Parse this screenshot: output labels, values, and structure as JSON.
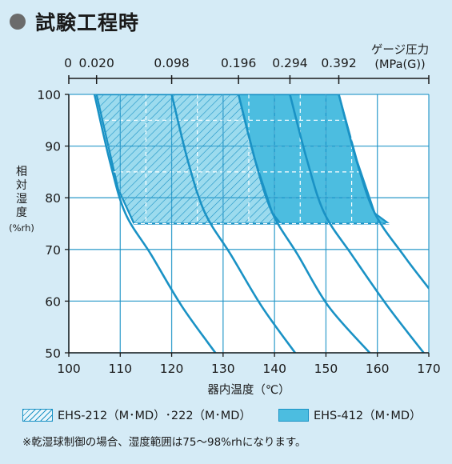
{
  "heading": {
    "title": "試験工程時"
  },
  "chart_data": {
    "type": "area",
    "xlabel": "器内温度（℃）",
    "ylabel": [
      "相",
      "対",
      "湿",
      "度",
      "(%rh)"
    ],
    "xlim": [
      100,
      170
    ],
    "ylim": [
      50,
      100
    ],
    "xticks": [
      100,
      110,
      120,
      130,
      140,
      150,
      160,
      170
    ],
    "yticks": [
      50,
      60,
      70,
      80,
      90,
      100
    ],
    "grid": true,
    "top_axis": {
      "label": [
        "ゲージ圧力",
        "(MPa(G))"
      ],
      "ticks": [
        {
          "value": 0,
          "label": "0",
          "x": 100
        },
        {
          "value": 0.02,
          "label": "0.020",
          "x": 105.4
        },
        {
          "value": 0.098,
          "label": "0.098",
          "x": 120
        },
        {
          "value": 0.196,
          "label": "0.196",
          "x": 133
        },
        {
          "value": 0.294,
          "label": "0.294",
          "x": 143
        },
        {
          "value": 0.392,
          "label": "0.392",
          "x": 152.5
        },
        {
          "value": null,
          "label": "",
          "x": 170
        }
      ]
    },
    "pressure_curves": [
      {
        "pressure": 0.02,
        "points": [
          [
            105,
            100
          ],
          [
            108,
            87
          ],
          [
            111,
            77
          ],
          [
            116,
            69
          ],
          [
            122,
            59
          ],
          [
            128.5,
            50
          ]
        ]
      },
      {
        "pressure": 0.098,
        "points": [
          [
            120,
            100
          ],
          [
            123.2,
            87
          ],
          [
            126.5,
            77
          ],
          [
            131.5,
            69
          ],
          [
            137.5,
            59
          ],
          [
            144,
            50
          ]
        ]
      },
      {
        "pressure": 0.196,
        "points": [
          [
            133,
            100
          ],
          [
            136.3,
            87
          ],
          [
            139.6,
            77
          ],
          [
            144.5,
            69
          ],
          [
            150.5,
            59
          ],
          [
            158.5,
            50
          ]
        ]
      },
      {
        "pressure": 0.294,
        "points": [
          [
            143,
            100
          ],
          [
            146.4,
            87
          ],
          [
            149.7,
            77
          ],
          [
            155,
            69
          ],
          [
            162,
            59
          ],
          [
            169,
            50
          ]
        ]
      },
      {
        "pressure": 0.392,
        "points": [
          [
            152.5,
            100
          ],
          [
            156,
            87
          ],
          [
            159.5,
            77
          ],
          [
            165,
            69
          ],
          [
            170,
            62.5
          ]
        ]
      }
    ],
    "series": [
      {
        "name": "EHS-412（M･MD）",
        "fill": "#4cbde0",
        "points": [
          [
            105.4,
            100
          ],
          [
            152.5,
            100
          ],
          [
            156.1,
            87
          ],
          [
            159.5,
            77
          ],
          [
            162.2,
            75
          ],
          [
            112.7,
            75
          ],
          [
            109.6,
            81.7
          ]
        ]
      },
      {
        "name": "EHS-212（M･MD）･222（M･MD）",
        "fill": "hatch",
        "points": [
          [
            105.4,
            100
          ],
          [
            133,
            100
          ],
          [
            136.3,
            87
          ],
          [
            139.6,
            77
          ],
          [
            141.2,
            75
          ],
          [
            112.7,
            75
          ],
          [
            109.6,
            81.7
          ]
        ]
      }
    ]
  },
  "legend": {
    "items": [
      {
        "label": "EHS-212（M･MD）･222（M･MD）"
      },
      {
        "label": "EHS-412（M･MD）"
      }
    ]
  },
  "footnote": "※乾湿球制御の場合、湿度範囲は75～98%rhになります。"
}
